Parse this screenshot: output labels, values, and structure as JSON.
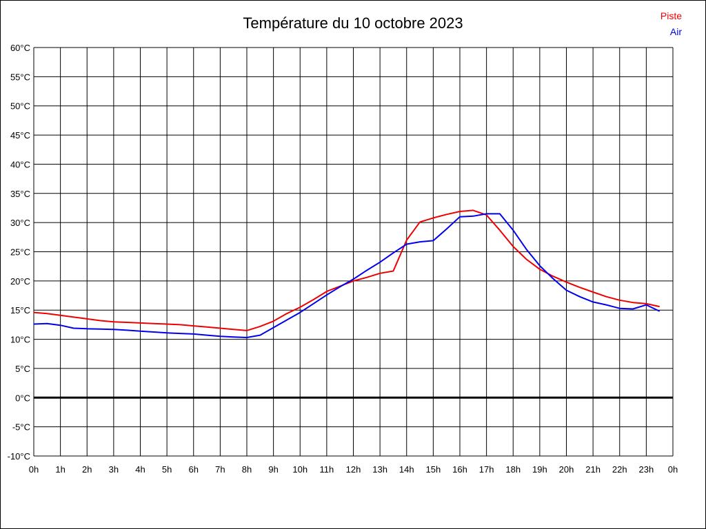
{
  "chart_data": {
    "type": "line",
    "title": "Température du 10 octobre 2023",
    "xlabel": "",
    "ylabel": "",
    "x_unit": "hours",
    "xlim": [
      0,
      24
    ],
    "ylim": [
      -10,
      60
    ],
    "y_tick_step": 5,
    "grid": true,
    "legend_position": "top-right",
    "x_tick_labels": [
      "0h",
      "1h",
      "2h",
      "3h",
      "4h",
      "5h",
      "6h",
      "7h",
      "8h",
      "9h",
      "10h",
      "11h",
      "12h",
      "13h",
      "14h",
      "15h",
      "16h",
      "17h",
      "18h",
      "19h",
      "20h",
      "21h",
      "22h",
      "23h",
      "0h"
    ],
    "y_tick_labels": [
      "60°C",
      "55°C",
      "50°C",
      "45°C",
      "40°C",
      "35°C",
      "30°C",
      "25°C",
      "20°C",
      "15°C",
      "10°C",
      "5°C",
      "0°C",
      "-5°C",
      "-10°C"
    ],
    "zero_line": {
      "value": 0,
      "color": "#000000",
      "width": 3
    },
    "gridline_color": "#000000",
    "series": [
      {
        "name": "Piste",
        "color": "#ee0000",
        "x": [
          0,
          0.5,
          1,
          1.5,
          2,
          2.5,
          3,
          3.5,
          4,
          4.5,
          5,
          5.5,
          6,
          6.5,
          7,
          7.5,
          8,
          8.5,
          9,
          9.5,
          10,
          10.5,
          11,
          11.5,
          12,
          12.5,
          13,
          13.5,
          14,
          14.5,
          15,
          15.5,
          16,
          16.5,
          17,
          17.5,
          18,
          18.5,
          19,
          19.5,
          20,
          20.5,
          21,
          21.5,
          22,
          22.5,
          23,
          23.5
        ],
        "values": [
          14.6,
          14.4,
          14.1,
          13.8,
          13.5,
          13.2,
          13.0,
          12.9,
          12.8,
          12.7,
          12.6,
          12.5,
          12.3,
          12.1,
          11.9,
          11.7,
          11.5,
          12.2,
          13.1,
          14.4,
          15.5,
          16.8,
          18.2,
          19.1,
          20.0,
          20.6,
          21.3,
          21.7,
          27.0,
          30.1,
          30.8,
          31.4,
          31.9,
          32.1,
          31.3,
          28.7,
          25.9,
          23.7,
          22.0,
          20.8,
          19.8,
          18.9,
          18.1,
          17.3,
          16.7,
          16.3,
          16.1,
          15.6
        ]
      },
      {
        "name": "Air",
        "color": "#0000ee",
        "x": [
          0,
          0.5,
          1,
          1.5,
          2,
          2.5,
          3,
          3.5,
          4,
          4.5,
          5,
          5.5,
          6,
          6.5,
          7,
          7.5,
          8,
          8.5,
          9,
          9.5,
          10,
          10.5,
          11,
          11.5,
          12,
          12.5,
          13,
          13.5,
          14,
          14.5,
          15,
          15.5,
          16,
          16.5,
          17,
          17.5,
          18,
          18.5,
          19,
          19.5,
          20,
          20.5,
          21,
          21.5,
          22,
          22.5,
          23,
          23.5
        ],
        "values": [
          12.6,
          12.7,
          12.4,
          11.9,
          11.8,
          11.75,
          11.7,
          11.55,
          11.4,
          11.25,
          11.1,
          11.0,
          10.9,
          10.7,
          10.5,
          10.4,
          10.3,
          10.7,
          12.0,
          13.3,
          14.6,
          16.1,
          17.6,
          19.0,
          20.3,
          21.8,
          23.2,
          24.8,
          26.3,
          26.7,
          26.9,
          28.9,
          31.0,
          31.1,
          31.5,
          31.5,
          28.7,
          25.4,
          22.6,
          20.4,
          18.4,
          17.3,
          16.4,
          15.9,
          15.3,
          15.2,
          15.9,
          14.8
        ]
      }
    ]
  }
}
